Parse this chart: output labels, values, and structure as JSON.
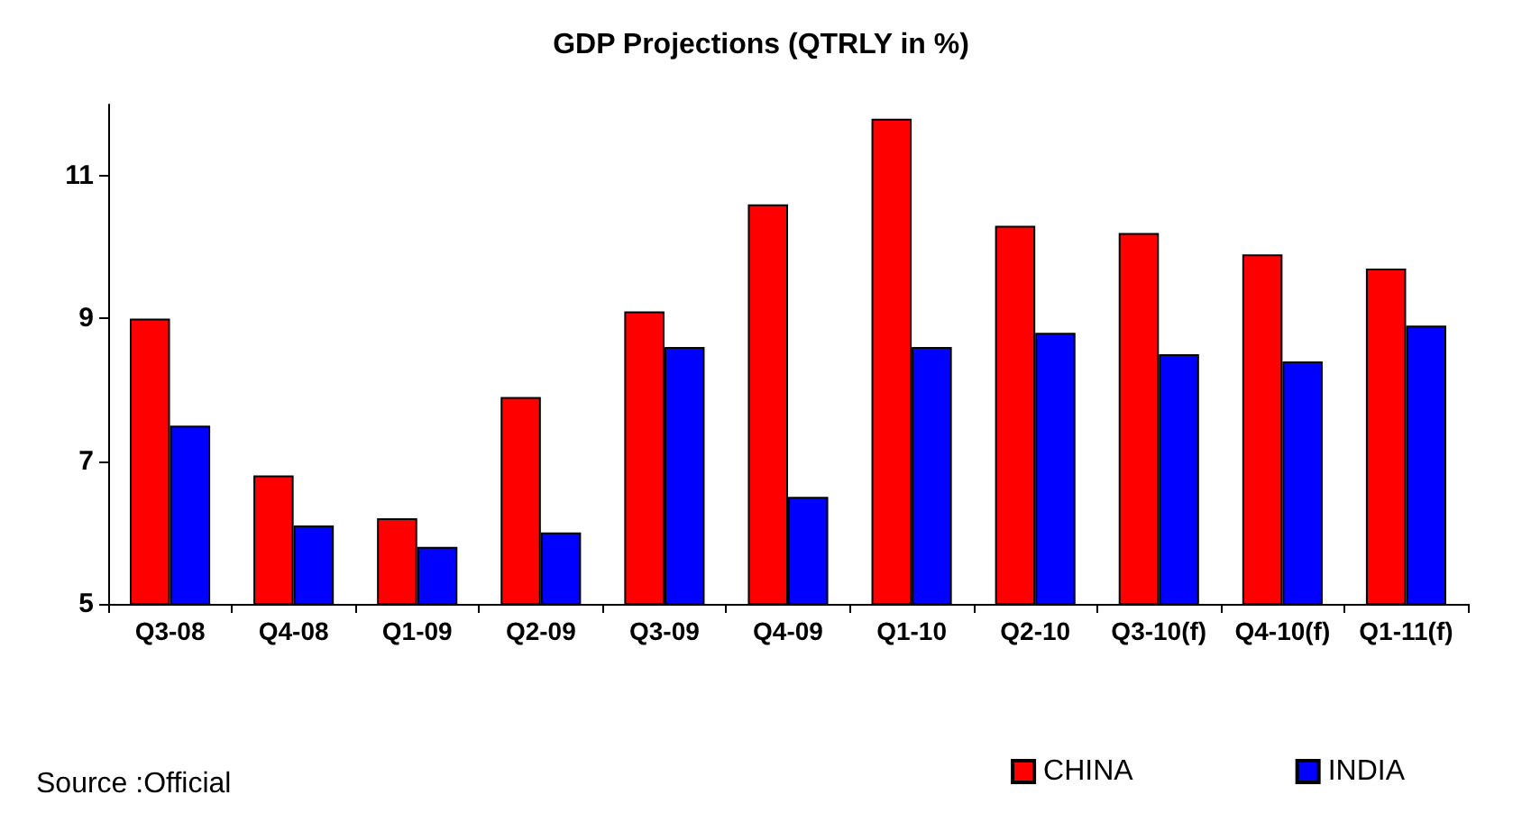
{
  "chart_data": {
    "type": "bar",
    "title": "GDP Projections (QTRLY in %)",
    "categories": [
      "Q3-08",
      "Q4-08",
      "Q1-09",
      "Q2-09",
      "Q3-09",
      "Q4-09",
      "Q1-10",
      "Q2-10",
      "Q3-10(f)",
      "Q4-10(f)",
      "Q1-11(f)"
    ],
    "series": [
      {
        "name": "CHINA",
        "color": "#ff0000",
        "values": [
          9.0,
          6.8,
          6.2,
          7.9,
          9.1,
          10.6,
          11.8,
          10.3,
          10.2,
          9.9,
          9.7
        ]
      },
      {
        "name": "INDIA",
        "color": "#0000ff",
        "values": [
          7.5,
          6.1,
          5.8,
          6.0,
          8.6,
          6.5,
          8.6,
          8.8,
          8.5,
          8.4,
          8.9
        ]
      }
    ],
    "ylim": [
      5,
      12
    ],
    "yticks": [
      5,
      7,
      9,
      11
    ],
    "grid": false,
    "legend": "bottom right",
    "annotations": [
      "Source :Official"
    ]
  }
}
